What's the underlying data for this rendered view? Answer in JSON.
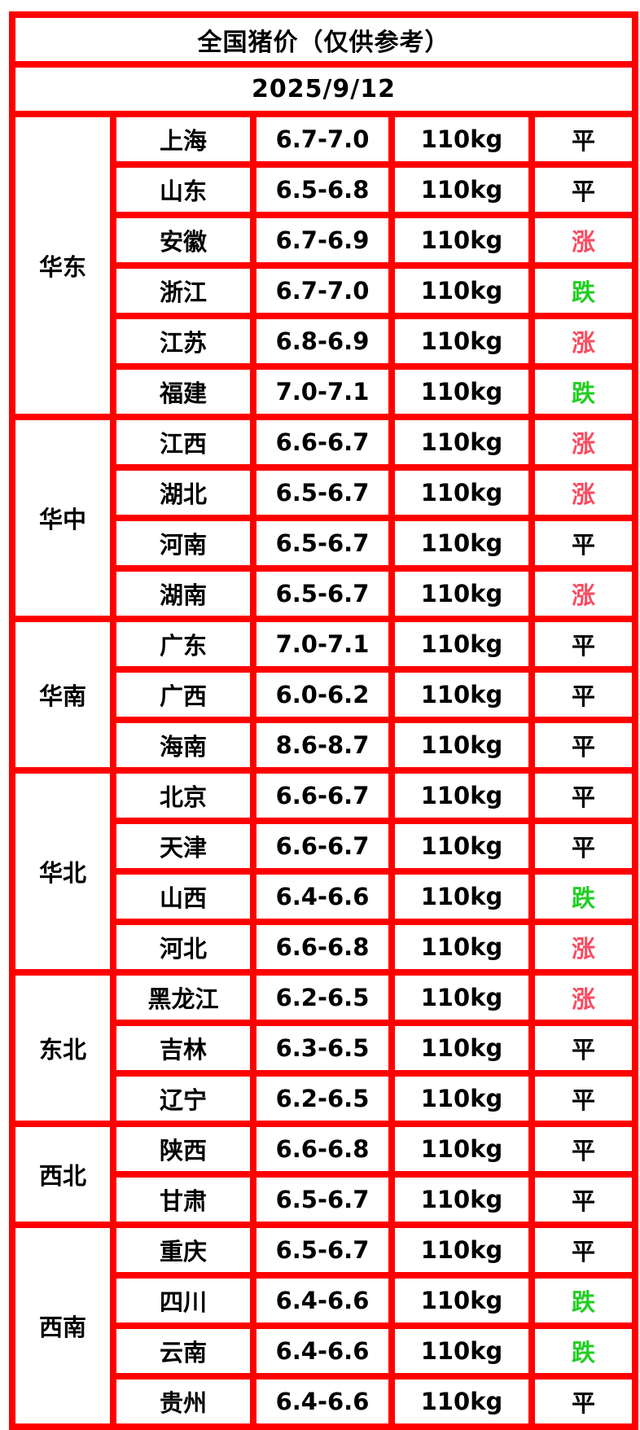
{
  "header": {
    "title": "全国猪价（仅供参考）",
    "date": "2025/9/12"
  },
  "colors": {
    "banner_bg": "#EC6214",
    "grid_border": "#FF0000",
    "rise": "#FB4B5F",
    "fall": "#21CE21",
    "flat": "#000000"
  },
  "table": {
    "regions": [
      {
        "name": "华东"
      },
      {
        "name": "华中"
      },
      {
        "name": "华南"
      },
      {
        "name": "华北"
      },
      {
        "name": "东北"
      },
      {
        "name": "西北"
      },
      {
        "name": "西南"
      }
    ],
    "rows": [
      {
        "region": "华东",
        "province": "上海",
        "price": "6.7-7.0",
        "weight": "110kg",
        "trend": "平",
        "trend_type": "flat"
      },
      {
        "region": "华东",
        "province": "山东",
        "price": "6.5-6.8",
        "weight": "110kg",
        "trend": "平",
        "trend_type": "flat"
      },
      {
        "region": "华东",
        "province": "安徽",
        "price": "6.7-6.9",
        "weight": "110kg",
        "trend": "涨",
        "trend_type": "rise"
      },
      {
        "region": "华东",
        "province": "浙江",
        "price": "6.7-7.0",
        "weight": "110kg",
        "trend": "跌",
        "trend_type": "fall"
      },
      {
        "region": "华东",
        "province": "江苏",
        "price": "6.8-6.9",
        "weight": "110kg",
        "trend": "涨",
        "trend_type": "rise"
      },
      {
        "region": "华东",
        "province": "福建",
        "price": "7.0-7.1",
        "weight": "110kg",
        "trend": "跌",
        "trend_type": "fall"
      },
      {
        "region": "华中",
        "province": "江西",
        "price": "6.6-6.7",
        "weight": "110kg",
        "trend": "涨",
        "trend_type": "rise"
      },
      {
        "region": "华中",
        "province": "湖北",
        "price": "6.5-6.7",
        "weight": "110kg",
        "trend": "涨",
        "trend_type": "rise"
      },
      {
        "region": "华中",
        "province": "河南",
        "price": "6.5-6.7",
        "weight": "110kg",
        "trend": "平",
        "trend_type": "flat"
      },
      {
        "region": "华中",
        "province": "湖南",
        "price": "6.5-6.7",
        "weight": "110kg",
        "trend": "涨",
        "trend_type": "rise"
      },
      {
        "region": "华南",
        "province": "广东",
        "price": "7.0-7.1",
        "weight": "110kg",
        "trend": "平",
        "trend_type": "flat"
      },
      {
        "region": "华南",
        "province": "广西",
        "price": "6.0-6.2",
        "weight": "110kg",
        "trend": "平",
        "trend_type": "flat"
      },
      {
        "region": "华南",
        "province": "海南",
        "price": "8.6-8.7",
        "weight": "110kg",
        "trend": "平",
        "trend_type": "flat"
      },
      {
        "region": "华北",
        "province": "北京",
        "price": "6.6-6.7",
        "weight": "110kg",
        "trend": "平",
        "trend_type": "flat"
      },
      {
        "region": "华北",
        "province": "天津",
        "price": "6.6-6.7",
        "weight": "110kg",
        "trend": "平",
        "trend_type": "flat"
      },
      {
        "region": "华北",
        "province": "山西",
        "price": "6.4-6.6",
        "weight": "110kg",
        "trend": "跌",
        "trend_type": "fall"
      },
      {
        "region": "华北",
        "province": "河北",
        "price": "6.6-6.8",
        "weight": "110kg",
        "trend": "涨",
        "trend_type": "rise"
      },
      {
        "region": "东北",
        "province": "黑龙江",
        "price": "6.2-6.5",
        "weight": "110kg",
        "trend": "涨",
        "trend_type": "rise"
      },
      {
        "region": "东北",
        "province": "吉林",
        "price": "6.3-6.5",
        "weight": "110kg",
        "trend": "平",
        "trend_type": "flat"
      },
      {
        "region": "东北",
        "province": "辽宁",
        "price": "6.2-6.5",
        "weight": "110kg",
        "trend": "平",
        "trend_type": "flat"
      },
      {
        "region": "西北",
        "province": "陕西",
        "price": "6.6-6.8",
        "weight": "110kg",
        "trend": "平",
        "trend_type": "flat"
      },
      {
        "region": "西北",
        "province": "甘肃",
        "price": "6.5-6.7",
        "weight": "110kg",
        "trend": "平",
        "trend_type": "flat"
      },
      {
        "region": "西南",
        "province": "重庆",
        "price": "6.5-6.7",
        "weight": "110kg",
        "trend": "平",
        "trend_type": "flat"
      },
      {
        "region": "西南",
        "province": "四川",
        "price": "6.4-6.6",
        "weight": "110kg",
        "trend": "跌",
        "trend_type": "fall"
      },
      {
        "region": "西南",
        "province": "云南",
        "price": "6.4-6.6",
        "weight": "110kg",
        "trend": "跌",
        "trend_type": "fall"
      },
      {
        "region": "西南",
        "province": "贵州",
        "price": "6.4-6.6",
        "weight": "110kg",
        "trend": "平",
        "trend_type": "flat"
      }
    ]
  }
}
